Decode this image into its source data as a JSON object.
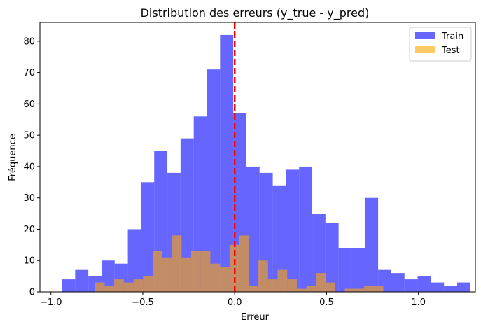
{
  "chart_data": {
    "type": "histogram",
    "title": "Distribution des erreurs (y_true - y_pred)",
    "xlabel": "Erreur",
    "ylabel": "Fréquence",
    "xlim": [
      -1.06,
      1.31
    ],
    "ylim": [
      0,
      86
    ],
    "xticks": [
      -1.0,
      -0.5,
      0.0,
      0.5,
      1.0
    ],
    "xtick_labels": [
      "−1.0",
      "−0.5",
      "0.0",
      "0.5",
      "1.0"
    ],
    "yticks": [
      0,
      10,
      20,
      30,
      40,
      50,
      60,
      70,
      80
    ],
    "ytick_labels": [
      "0",
      "10",
      "20",
      "30",
      "40",
      "50",
      "60",
      "70",
      "80"
    ],
    "legend": {
      "position": "top-right"
    },
    "vline": {
      "x": 0.0,
      "color": "#ff0000",
      "style": "dashed"
    },
    "series": [
      {
        "name": "Train",
        "color": "#0000ff",
        "opacity": 0.6,
        "bin_start": -0.94,
        "bin_width": 0.0717,
        "values": [
          4,
          7,
          5,
          10,
          9,
          20,
          35,
          45,
          38,
          49,
          56,
          71,
          82,
          57,
          40,
          38,
          34,
          39,
          40,
          25,
          22,
          14,
          14,
          30,
          7,
          6,
          4,
          5,
          3,
          2,
          3
        ]
      },
      {
        "name": "Test",
        "color": "#ffa500",
        "opacity": 0.6,
        "bin_start": -0.76,
        "bin_width": 0.0523,
        "values": [
          3,
          2,
          4,
          3,
          4,
          5,
          13,
          11,
          18,
          11,
          13,
          13,
          9,
          8,
          15,
          18,
          2,
          10,
          4,
          7,
          4,
          1,
          2,
          6,
          3,
          0,
          1,
          1,
          2,
          2
        ]
      }
    ]
  }
}
